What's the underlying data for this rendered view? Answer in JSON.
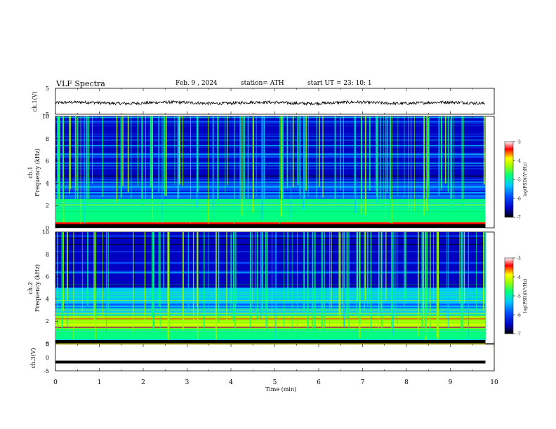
{
  "header": {
    "title": "VLF  Spectra",
    "date": "Feb. 9   , 2024",
    "station": "station= ATH",
    "start_ut": "start  UT  =    23: 10: 1"
  },
  "colors": {
    "spectrogram_palette": [
      "#000000",
      "#0000c0",
      "#0050ff",
      "#00c8ff",
      "#00ff80",
      "#a0ff00",
      "#ffff00",
      "#ff0000",
      "#ffffff"
    ],
    "trace": "#000000"
  },
  "chart_data": [
    {
      "type": "line",
      "name": "ch1-waveform",
      "ylabel": "ch.1(V)",
      "ylim": [
        -5,
        5
      ],
      "yticks": [
        "5",
        "-5"
      ],
      "xlim": [
        0,
        10
      ],
      "description_values": {
        "mean_v": -0.6,
        "amplitude_v": 0.8
      }
    },
    {
      "type": "heatmap",
      "name": "ch1-spectrogram",
      "ylabel": "ch.1\nFrequency (kHz)",
      "ylim": [
        0,
        10
      ],
      "yticks": [
        "0",
        "2",
        "4",
        "6",
        "8",
        "10"
      ],
      "xlim": [
        0,
        9.8
      ],
      "colorbar": {
        "label": "log(PSD)(V²/Hz)",
        "range": [
          -7,
          -3
        ],
        "ticks": [
          "-3",
          "-4",
          "-5",
          "-6",
          "-7"
        ]
      },
      "bands_khz": [
        {
          "from": 0.0,
          "to": 0.5,
          "level": -3.4
        },
        {
          "from": 0.5,
          "to": 1.5,
          "level": -4.8
        },
        {
          "from": 1.5,
          "to": 2.6,
          "level": -5.0
        },
        {
          "from": 2.6,
          "to": 4.0,
          "level": -6.1
        },
        {
          "from": 4.0,
          "to": 6.5,
          "level": -6.4
        },
        {
          "from": 6.5,
          "to": 10.0,
          "level": -6.2
        }
      ]
    },
    {
      "type": "heatmap",
      "name": "ch2-spectrogram",
      "ylabel": "ch.2\nFrequency (kHz)",
      "ylim": [
        0,
        10
      ],
      "yticks": [
        "0",
        "2",
        "4",
        "6",
        "8",
        "10"
      ],
      "xlim": [
        0,
        9.8
      ],
      "colorbar": {
        "label": "log(PSD)(V²/Hz)",
        "range": [
          -7,
          -3
        ],
        "ticks": [
          "-3",
          "-4",
          "-5",
          "-6",
          "-7"
        ]
      },
      "bands_khz": [
        {
          "from": 0.0,
          "to": 1.5,
          "level": -4.9
        },
        {
          "from": 1.5,
          "to": 2.5,
          "level": -4.2
        },
        {
          "from": 2.5,
          "to": 5.0,
          "level": -5.3
        },
        {
          "from": 5.0,
          "to": 8.0,
          "level": -6.4
        },
        {
          "from": 8.0,
          "to": 10.0,
          "level": -6.6
        }
      ]
    },
    {
      "type": "line",
      "name": "ch3-waveform",
      "ylabel": "ch.3(V)",
      "ylim": [
        -5,
        5
      ],
      "yticks": [
        "5",
        "0",
        "-5"
      ],
      "xlim": [
        0,
        10
      ],
      "xlabel": "Time  (min)",
      "xticks": [
        "0",
        "1",
        "2",
        "3",
        "4",
        "5",
        "6",
        "7",
        "8",
        "9",
        "10"
      ],
      "description_values": {
        "constant_v": -1.7
      }
    }
  ]
}
